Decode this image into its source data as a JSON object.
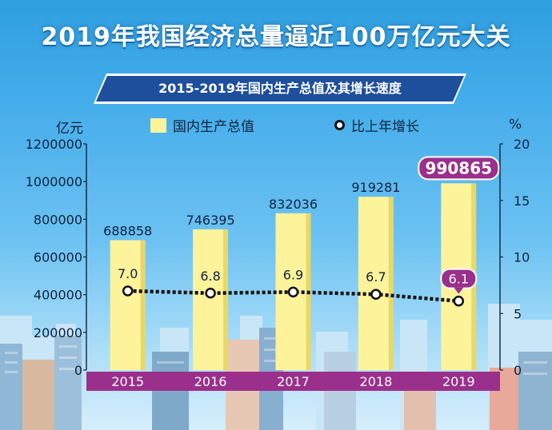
{
  "title": "2019年我国经济总量逼近100万亿元大关",
  "subtitle": "2015-2019年国内生产总值及其增长速度",
  "colors": {
    "bar": "#fdf39a",
    "bar_shade": "#e9d865",
    "year_band": "#9b2f8c",
    "highlight": "#9b2f8c",
    "line": "#111111"
  },
  "chart_data": {
    "type": "bar",
    "categories": [
      "2015",
      "2016",
      "2017",
      "2018",
      "2019"
    ],
    "series": [
      {
        "name": "国内生产总值",
        "type": "bar",
        "axis": "left",
        "values": [
          688858,
          746395,
          832036,
          919281,
          990865
        ],
        "labels": [
          "688858",
          "746395",
          "832036",
          "919281",
          "990865"
        ]
      },
      {
        "name": "比上年增长",
        "type": "line",
        "axis": "right",
        "values": [
          7.0,
          6.8,
          6.9,
          6.7,
          6.1
        ],
        "labels": [
          "7.0",
          "6.8",
          "6.9",
          "6.7",
          "6.1"
        ]
      }
    ],
    "y_left": {
      "unit": "亿元",
      "range": [
        0,
        1200000
      ],
      "ticks": [
        "0",
        "200000",
        "400000",
        "600000",
        "800000",
        "1000000",
        "1200000"
      ]
    },
    "y_right": {
      "unit": "%",
      "range": [
        0,
        20
      ],
      "ticks": [
        "0",
        "5",
        "10",
        "15",
        "20"
      ]
    },
    "highlight_index": 4,
    "legend_position": "top"
  }
}
